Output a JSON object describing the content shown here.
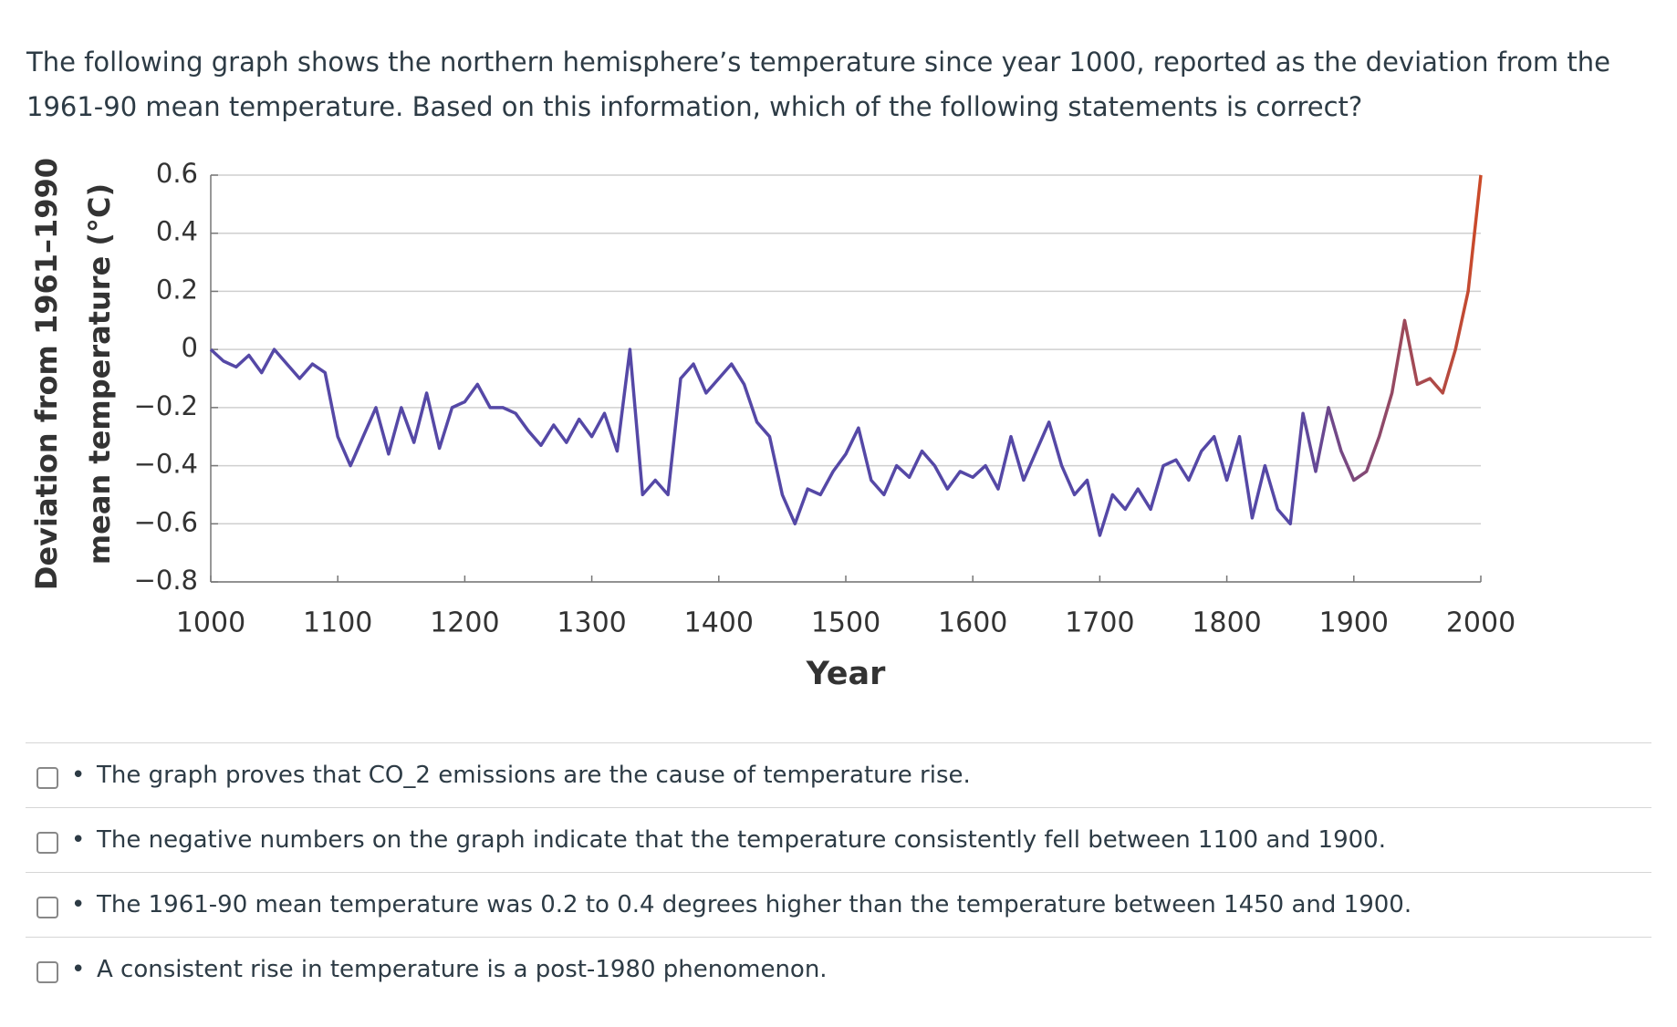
{
  "question": "The following graph shows the northern hemisphere’s temperature since year 1000, reported as the deviation from the 1961-90 mean temperature. Based on this information, which of the following statements is correct?",
  "chart_data": {
    "type": "line",
    "xlabel": "Year",
    "ylabel": [
      "Deviation from 1961–1990",
      "mean temperature (°C)"
    ],
    "x": [
      1000,
      1010,
      1020,
      1030,
      1040,
      1050,
      1060,
      1070,
      1080,
      1090,
      1100,
      1110,
      1120,
      1130,
      1140,
      1150,
      1160,
      1170,
      1180,
      1190,
      1200,
      1210,
      1220,
      1230,
      1240,
      1250,
      1260,
      1270,
      1280,
      1290,
      1300,
      1310,
      1320,
      1330,
      1340,
      1350,
      1360,
      1370,
      1380,
      1390,
      1400,
      1410,
      1420,
      1430,
      1440,
      1450,
      1460,
      1470,
      1480,
      1490,
      1500,
      1510,
      1520,
      1530,
      1540,
      1550,
      1560,
      1570,
      1580,
      1590,
      1600,
      1610,
      1620,
      1630,
      1640,
      1650,
      1660,
      1670,
      1680,
      1690,
      1700,
      1710,
      1720,
      1730,
      1740,
      1750,
      1760,
      1770,
      1780,
      1790,
      1800,
      1810,
      1820,
      1830,
      1840,
      1850,
      1860,
      1870,
      1880,
      1890,
      1900,
      1910,
      1920,
      1930,
      1940,
      1950,
      1960,
      1970,
      1980,
      1990,
      2000
    ],
    "series": [
      {
        "color": "#5548a6",
        "end_color": "#cc4a28",
        "values": [
          0.0,
          -0.04,
          -0.06,
          -0.02,
          -0.08,
          0.0,
          -0.05,
          -0.1,
          -0.05,
          -0.08,
          -0.3,
          -0.4,
          -0.3,
          -0.2,
          -0.36,
          -0.2,
          -0.32,
          -0.15,
          -0.34,
          -0.2,
          -0.18,
          -0.12,
          -0.2,
          -0.2,
          -0.22,
          -0.28,
          -0.33,
          -0.26,
          -0.32,
          -0.24,
          -0.3,
          -0.22,
          -0.35,
          0.0,
          -0.5,
          -0.45,
          -0.5,
          -0.1,
          -0.05,
          -0.15,
          -0.1,
          -0.05,
          -0.12,
          -0.25,
          -0.3,
          -0.5,
          -0.6,
          -0.48,
          -0.5,
          -0.42,
          -0.36,
          -0.27,
          -0.45,
          -0.5,
          -0.4,
          -0.44,
          -0.35,
          -0.4,
          -0.48,
          -0.42,
          -0.44,
          -0.4,
          -0.48,
          -0.3,
          -0.45,
          -0.35,
          -0.25,
          -0.4,
          -0.5,
          -0.45,
          -0.64,
          -0.5,
          -0.55,
          -0.48,
          -0.55,
          -0.4,
          -0.38,
          -0.45,
          -0.35,
          -0.3,
          -0.45,
          -0.3,
          -0.58,
          -0.4,
          -0.55,
          -0.6,
          -0.22,
          -0.42,
          -0.2,
          -0.35,
          -0.45,
          -0.42,
          -0.3,
          -0.15,
          0.1,
          -0.12,
          -0.1,
          -0.15,
          0.0,
          0.2,
          0.6
        ]
      }
    ],
    "xlim": [
      1000,
      2000
    ],
    "xticks": [
      1000,
      1100,
      1200,
      1300,
      1400,
      1500,
      1600,
      1700,
      1800,
      1900,
      2000
    ],
    "ylim": [
      -0.8,
      0.6
    ],
    "yticks": [
      {
        "value": -0.8,
        "label": "−0.8"
      },
      {
        "value": -0.6,
        "label": "−0.6"
      },
      {
        "value": -0.4,
        "label": "−0.4"
      },
      {
        "value": -0.2,
        "label": "−0.2"
      },
      0,
      0.2,
      0.4,
      0.6
    ],
    "grid": true
  },
  "options": [
    "The graph proves that CO_2 emissions are the cause of temperature rise.",
    "The negative numbers on the graph indicate that the temperature consistently fell between 1100 and 1900.",
    "The 1961-90 mean temperature was 0.2 to 0.4 degrees higher than the temperature between 1450 and 1900.",
    "A consistent rise in temperature is a post-1980 phenomenon."
  ]
}
